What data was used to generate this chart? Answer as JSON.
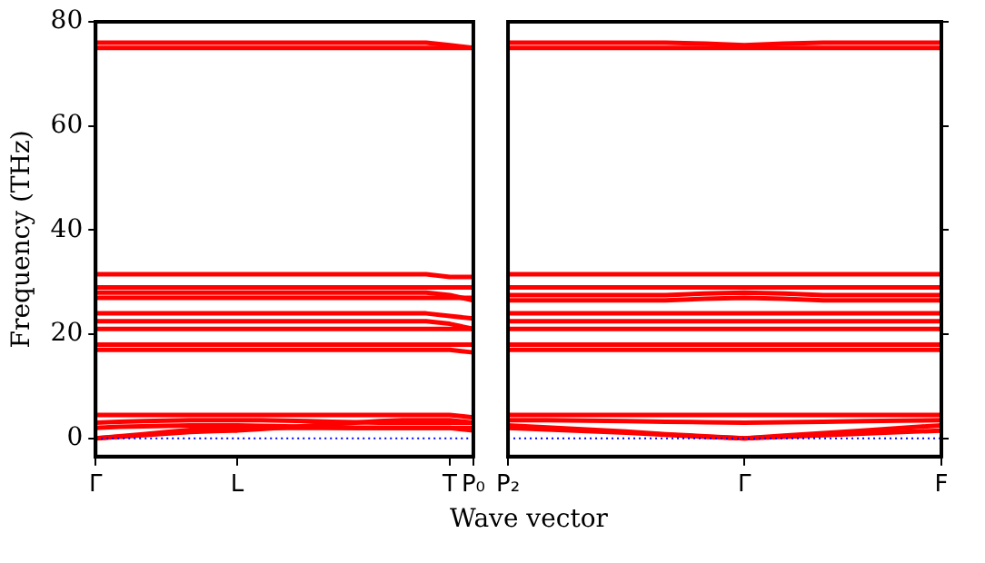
{
  "chart_data": [
    {
      "type": "line",
      "ylabel": "Frequency (THz)",
      "categories": [
        "Γ",
        null,
        null,
        null,
        null,
        null,
        "L",
        null,
        null,
        null,
        null,
        null,
        null,
        null,
        null,
        "T",
        "P₀"
      ],
      "ylim": [
        -3.5,
        80
      ],
      "yticks": [
        0,
        20,
        40,
        60,
        80
      ],
      "grid": false,
      "legend": false,
      "marker": "none",
      "line_style": "solid",
      "series": [
        {
          "color": "#ff0000",
          "values": [
            75,
            75,
            75,
            75,
            75,
            75,
            75,
            75,
            75,
            75,
            75,
            75,
            75,
            75,
            75,
            75,
            75
          ]
        },
        {
          "color": "#ff0000",
          "values": [
            76,
            76,
            76,
            76,
            76,
            76,
            76,
            76,
            76,
            76,
            76,
            76,
            76,
            76,
            76,
            75.5,
            75
          ]
        },
        {
          "color": "#ff0000",
          "values": [
            31.5,
            31.5,
            31.5,
            31.5,
            31.5,
            31.5,
            31.5,
            31.5,
            31.5,
            31.5,
            31.5,
            31.5,
            31.5,
            31.5,
            31.5,
            31,
            31
          ]
        },
        {
          "color": "#ff0000",
          "values": [
            29,
            29,
            29,
            29,
            29,
            29,
            29,
            29,
            29,
            29,
            29,
            29,
            29,
            29,
            29,
            29,
            29
          ]
        },
        {
          "color": "#ff0000",
          "values": [
            28,
            28,
            28,
            28,
            28,
            28,
            28,
            28,
            28,
            28,
            28,
            28,
            28,
            28,
            28,
            27.5,
            26.5
          ]
        },
        {
          "color": "#ff0000",
          "values": [
            27,
            27,
            27,
            27,
            27,
            27,
            27,
            27,
            27,
            27,
            27,
            27,
            27,
            27,
            27,
            27,
            27
          ]
        },
        {
          "color": "#ff0000",
          "values": [
            24,
            24,
            24,
            24,
            24,
            24,
            24,
            24,
            24,
            24,
            24,
            24,
            24,
            24,
            24,
            23.5,
            23
          ]
        },
        {
          "color": "#ff0000",
          "values": [
            22.5,
            22.5,
            22.5,
            22.5,
            22.5,
            22.5,
            22.5,
            22.5,
            22.5,
            22.5,
            22.5,
            22.5,
            22.5,
            22.5,
            22.5,
            22,
            21
          ]
        },
        {
          "color": "#ff0000",
          "values": [
            21,
            21,
            21,
            21,
            21,
            21,
            21,
            21,
            21,
            21,
            21,
            21,
            21,
            21,
            21,
            21,
            21
          ]
        },
        {
          "color": "#ff0000",
          "values": [
            18,
            18,
            18,
            18,
            18,
            18,
            18,
            18,
            18,
            18,
            18,
            18,
            18,
            18,
            18,
            18,
            18
          ]
        },
        {
          "color": "#ff0000",
          "values": [
            17,
            17,
            17,
            17,
            17,
            17,
            17,
            17,
            17,
            17,
            17,
            17,
            17,
            17,
            17,
            17,
            16.5
          ]
        },
        {
          "color": "#ff0000",
          "values": [
            4.5,
            4.5,
            4.5,
            4.5,
            4.5,
            4.5,
            4.5,
            4.5,
            4.5,
            4.5,
            4.5,
            4.5,
            4.5,
            4.5,
            4.5,
            4.5,
            4
          ]
        },
        {
          "color": "#ff0000",
          "values": [
            3,
            3.2,
            3.3,
            3.4,
            3.5,
            3.5,
            3.5,
            3.5,
            3.4,
            3.3,
            3.2,
            3.1,
            3,
            3,
            3,
            3,
            3
          ]
        },
        {
          "color": "#ff0000",
          "values": [
            2,
            2.2,
            2.3,
            2.4,
            2.5,
            2.5,
            2.5,
            2.4,
            2.3,
            2.2,
            2.1,
            2,
            2,
            2,
            2,
            2,
            2
          ]
        },
        {
          "color": "#ff0000",
          "values": [
            0,
            0.4,
            0.8,
            1.2,
            1.6,
            1.8,
            2,
            2,
            2,
            2,
            2,
            2,
            2,
            2,
            2,
            2,
            1.5
          ]
        },
        {
          "color": "#ff0000",
          "values": [
            0,
            0.3,
            0.6,
            0.9,
            1.2,
            1.4,
            1.5,
            1.8,
            2.1,
            2.4,
            2.7,
            3,
            3.3,
            3.5,
            3.5,
            3.5,
            3
          ]
        }
      ],
      "ref_lines": [
        {
          "axis": "y",
          "value": 0,
          "color": "#0000ff",
          "line_style": "dotted"
        }
      ]
    },
    {
      "type": "line",
      "xlabel": "Wave vector",
      "categories": [
        "P₂",
        null,
        null,
        null,
        null,
        null,
        "Γ",
        null,
        null,
        null,
        null,
        "F"
      ],
      "ylim": [
        -3.5,
        80
      ],
      "yticks": [
        0,
        20,
        40,
        60,
        80
      ],
      "tick_labels": "x",
      "grid": false,
      "legend": false,
      "marker": "none",
      "line_style": "solid",
      "series": [
        {
          "color": "#ff0000",
          "values": [
            75,
            75,
            75,
            75,
            75,
            75,
            75,
            75,
            75,
            75,
            75,
            75
          ]
        },
        {
          "color": "#ff0000",
          "values": [
            76,
            76,
            76,
            76,
            76,
            75.8,
            75.5,
            75.8,
            76,
            76,
            76,
            76
          ]
        },
        {
          "color": "#ff0000",
          "values": [
            31.5,
            31.5,
            31.5,
            31.5,
            31.5,
            31.5,
            31.5,
            31.5,
            31.5,
            31.5,
            31.5,
            31.5
          ]
        },
        {
          "color": "#ff0000",
          "values": [
            29,
            29,
            29,
            29,
            29,
            29,
            29,
            29,
            29,
            29,
            29,
            29
          ]
        },
        {
          "color": "#ff0000",
          "values": [
            27.5,
            27.5,
            27.5,
            27.5,
            27.5,
            27.8,
            28,
            27.8,
            27.5,
            27.5,
            27.5,
            27.5
          ]
        },
        {
          "color": "#ff0000",
          "values": [
            26.5,
            26.5,
            26.5,
            26.5,
            26.5,
            26.8,
            27,
            26.8,
            26.5,
            26.5,
            26.5,
            26.5
          ]
        },
        {
          "color": "#ff0000",
          "values": [
            24,
            24,
            24,
            24,
            24,
            24,
            24,
            24,
            24,
            24,
            24,
            24
          ]
        },
        {
          "color": "#ff0000",
          "values": [
            22.5,
            22.5,
            22.5,
            22.5,
            22.5,
            22.5,
            22.5,
            22.5,
            22.5,
            22.5,
            22.5,
            22.5
          ]
        },
        {
          "color": "#ff0000",
          "values": [
            21,
            21,
            21,
            21,
            21,
            21,
            21,
            21,
            21,
            21,
            21,
            21
          ]
        },
        {
          "color": "#ff0000",
          "values": [
            18,
            18,
            18,
            18,
            18,
            18,
            18,
            18,
            18,
            18,
            18,
            18
          ]
        },
        {
          "color": "#ff0000",
          "values": [
            17,
            17,
            17,
            17,
            17,
            17,
            17,
            17,
            17,
            17,
            17,
            17
          ]
        },
        {
          "color": "#ff0000",
          "values": [
            4.5,
            4.5,
            4.5,
            4.5,
            4.5,
            4.5,
            4.5,
            4.5,
            4.5,
            4.5,
            4.5,
            4.5
          ]
        },
        {
          "color": "#ff0000",
          "values": [
            3.5,
            3.5,
            3.4,
            3.3,
            3.2,
            3.1,
            3,
            3.1,
            3.2,
            3.3,
            3.4,
            3.5
          ]
        },
        {
          "color": "#ff0000",
          "values": [
            2.5,
            2.1,
            1.7,
            1.3,
            0.8,
            0.4,
            0,
            0.5,
            1,
            1.5,
            2,
            2.5
          ]
        },
        {
          "color": "#ff0000",
          "values": [
            2,
            1.7,
            1.4,
            1.1,
            0.7,
            0.3,
            0,
            0.3,
            0.6,
            0.9,
            1.2,
            1.5
          ]
        }
      ],
      "ref_lines": [
        {
          "axis": "y",
          "value": 0,
          "color": "#0000ff",
          "line_style": "dotted"
        }
      ]
    }
  ]
}
